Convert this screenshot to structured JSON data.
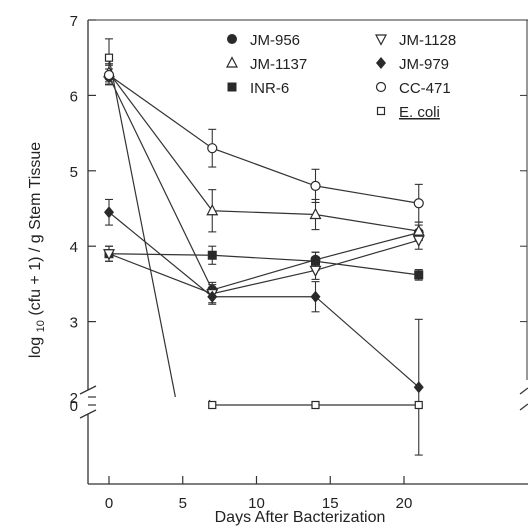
{
  "chart_data": {
    "type": "line",
    "xlabel": "Days After Bacterization",
    "ylabel": "log 10 (cfu + 1) / g Stem Tissue",
    "ylabel_parts": {
      "before": "log ",
      "sub": "10",
      "after": " (cfu + 1) / g Stem Tissue"
    },
    "xlim": [
      -2,
      22
    ],
    "ylim": [
      2,
      7
    ],
    "x_ticks": [
      0,
      5,
      10,
      15,
      20
    ],
    "y_ticks": [
      2,
      3,
      4,
      5,
      6,
      7
    ],
    "y_axis_break": {
      "lower_tick": 0,
      "between": [
        0,
        2
      ]
    },
    "grid": false,
    "legend_position": "top",
    "series": [
      {
        "name": "JM-956",
        "marker": "filled-circle",
        "x": [
          0,
          7,
          14,
          21
        ],
        "y": [
          6.25,
          3.42,
          3.82,
          4.18
        ],
        "err": [
          0.1,
          0.1,
          0.1,
          0.1
        ]
      },
      {
        "name": "JM-1137",
        "marker": "open-triangle-up",
        "x": [
          0,
          7,
          14,
          21
        ],
        "y": [
          6.3,
          4.47,
          4.42,
          4.2
        ],
        "err": [
          0.12,
          0.28,
          0.2,
          0.12
        ]
      },
      {
        "name": "INR-6",
        "marker": "filled-square",
        "x": [
          0,
          7,
          14,
          21
        ],
        "y": [
          3.9,
          3.88,
          3.8,
          3.62
        ],
        "err": [
          0.1,
          0.12,
          0.12,
          0.07
        ]
      },
      {
        "name": "JM-1128",
        "marker": "open-triangle-down",
        "x": [
          0,
          7,
          14,
          21
        ],
        "y": [
          3.9,
          3.37,
          3.68,
          4.08
        ],
        "err": [
          0.1,
          0.12,
          0.12,
          0.12
        ]
      },
      {
        "name": "JM-979",
        "marker": "filled-diamond",
        "x": [
          0,
          7,
          14,
          21
        ],
        "y": [
          4.45,
          3.33,
          3.33,
          2.13
        ],
        "err": [
          0.17,
          0.1,
          0.2,
          0.9
        ]
      },
      {
        "name": "CC-471",
        "marker": "open-circle",
        "x": [
          0,
          7,
          14,
          21
        ],
        "y": [
          6.27,
          5.3,
          4.8,
          4.57
        ],
        "err": [
          0.13,
          0.25,
          0.22,
          0.25
        ]
      },
      {
        "name": "E. coli",
        "marker": "open-square",
        "underline": true,
        "x": [
          0,
          7,
          14,
          21
        ],
        "y": [
          6.5,
          0,
          0,
          0
        ],
        "err": [
          0.25,
          0,
          0,
          0
        ],
        "line_to_zero_at_x": 4.5
      }
    ]
  }
}
